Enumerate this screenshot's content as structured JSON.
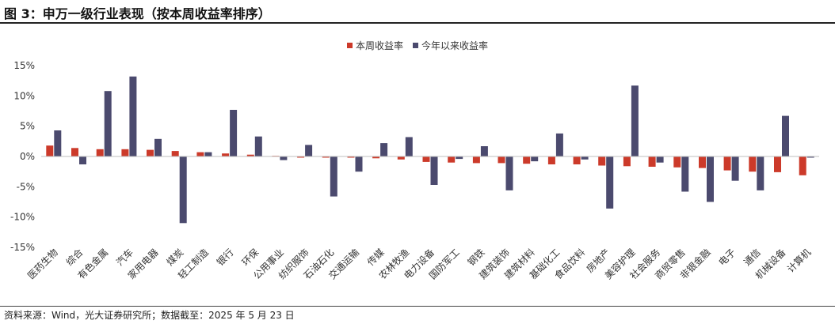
{
  "header": {
    "title": "图 3：申万一级行业表现（按本周收益率排序）"
  },
  "footer": {
    "source": "资料来源：Wind，光大证券研究所；数据截至：2025 年 5 月 23 日"
  },
  "colors": {
    "weekly": "#cc3a2a",
    "ytd": "#4b4a6e"
  },
  "chart_data": {
    "type": "bar",
    "title": "",
    "xlabel": "",
    "ylabel": "",
    "ylim": [
      -15,
      15
    ],
    "yticks": [
      15,
      10,
      5,
      0,
      -5,
      -10,
      -15
    ],
    "ytick_labels": [
      "15%",
      "10%",
      "5%",
      "0%",
      "-5%",
      "-10%",
      "-15%"
    ],
    "legend_position": "top-center",
    "grid": false,
    "categories": [
      "医药生物",
      "综合",
      "有色金属",
      "汽车",
      "家用电器",
      "煤炭",
      "轻工制造",
      "银行",
      "环保",
      "公用事业",
      "纺织服饰",
      "石油石化",
      "交通运输",
      "传媒",
      "农林牧渔",
      "电力设备",
      "国防军工",
      "钢铁",
      "建筑装饰",
      "建筑材料",
      "基础化工",
      "食品饮料",
      "房地产",
      "美容护理",
      "社会服务",
      "商贸零售",
      "非银金融",
      "电子",
      "通信",
      "机械设备",
      "计算机"
    ],
    "series": [
      {
        "name": "本周收益率",
        "values": [
          1.8,
          1.4,
          1.2,
          1.2,
          1.1,
          0.9,
          0.7,
          0.5,
          0.3,
          0.1,
          -0.2,
          -0.2,
          -0.2,
          -0.3,
          -0.5,
          -0.9,
          -1.0,
          -1.1,
          -1.1,
          -1.2,
          -1.3,
          -1.3,
          -1.5,
          -1.6,
          -1.7,
          -1.8,
          -1.9,
          -2.3,
          -2.5,
          -2.6,
          -3.1
        ]
      },
      {
        "name": "今年以来收益率",
        "values": [
          4.3,
          -1.3,
          10.8,
          13.2,
          2.9,
          -11.0,
          0.7,
          7.7,
          3.3,
          -0.6,
          1.9,
          -6.6,
          -2.5,
          2.2,
          3.2,
          -4.7,
          -0.4,
          1.7,
          -5.6,
          -0.8,
          3.8,
          -0.5,
          -8.6,
          11.7,
          -1.0,
          -5.8,
          -7.5,
          -4.0,
          -5.6,
          6.7,
          -0.2
        ]
      }
    ]
  }
}
